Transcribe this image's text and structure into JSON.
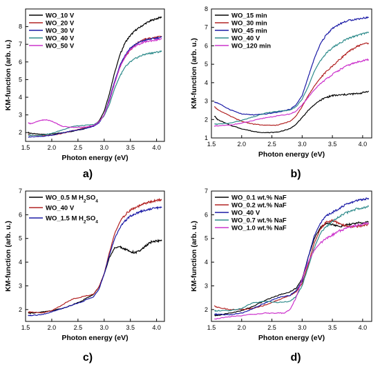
{
  "chart_data": [
    {
      "panel_label": "a)",
      "type": "line",
      "xlabel": "Photon energy (eV)",
      "ylabel": "KM-function (arb. u.)",
      "xlim": [
        1.5,
        4.15
      ],
      "ylim": [
        1.5,
        9.0
      ],
      "xticks": [
        "1.5",
        "2.0",
        "2.5",
        "3.0",
        "3.5",
        "4.0"
      ],
      "yticks": [
        "2",
        "3",
        "4",
        "5",
        "6",
        "7",
        "8"
      ],
      "legend_position": "top-left",
      "series": [
        {
          "name": "WO_10 V",
          "color": "#000000",
          "x": [
            1.55,
            1.6,
            1.8,
            2.0,
            2.2,
            2.4,
            2.6,
            2.8,
            2.9,
            3.0,
            3.1,
            3.2,
            3.3,
            3.4,
            3.5,
            3.6,
            3.7,
            3.8,
            3.9,
            4.0,
            4.1
          ],
          "y": [
            2.0,
            1.95,
            1.9,
            1.92,
            1.98,
            2.08,
            2.2,
            2.4,
            2.65,
            3.2,
            4.2,
            5.4,
            6.4,
            7.1,
            7.5,
            7.8,
            8.0,
            8.2,
            8.35,
            8.45,
            8.55
          ]
        },
        {
          "name": "WO_20 V",
          "color": "#b22222",
          "x": [
            1.55,
            1.6,
            1.8,
            2.0,
            2.2,
            2.4,
            2.6,
            2.8,
            2.9,
            3.0,
            3.1,
            3.2,
            3.3,
            3.4,
            3.5,
            3.6,
            3.7,
            3.8,
            3.9,
            4.0,
            4.1
          ],
          "y": [
            1.9,
            1.85,
            1.82,
            1.85,
            1.95,
            2.1,
            2.25,
            2.4,
            2.6,
            3.0,
            3.8,
            4.8,
            5.7,
            6.3,
            6.7,
            7.0,
            7.2,
            7.3,
            7.35,
            7.4,
            7.45
          ]
        },
        {
          "name": "WO_30 V",
          "color": "#1a1aa6",
          "x": [
            1.55,
            1.6,
            1.8,
            2.0,
            2.2,
            2.4,
            2.6,
            2.8,
            2.9,
            3.0,
            3.1,
            3.2,
            3.3,
            3.4,
            3.5,
            3.6,
            3.7,
            3.8,
            3.9,
            4.0,
            4.1
          ],
          "y": [
            1.75,
            1.75,
            1.78,
            1.85,
            1.98,
            2.1,
            2.2,
            2.35,
            2.55,
            3.0,
            3.9,
            4.9,
            5.8,
            6.4,
            6.8,
            7.0,
            7.15,
            7.25,
            7.3,
            7.35,
            7.4
          ]
        },
        {
          "name": "WO_40 V",
          "color": "#2e8b8b",
          "x": [
            1.55,
            1.6,
            1.8,
            2.0,
            2.2,
            2.4,
            2.6,
            2.8,
            2.9,
            3.0,
            3.1,
            3.2,
            3.3,
            3.4,
            3.5,
            3.6,
            3.7,
            3.8,
            3.9,
            4.0,
            4.1
          ],
          "y": [
            1.85,
            1.85,
            1.85,
            1.95,
            2.15,
            2.35,
            2.4,
            2.45,
            2.6,
            2.95,
            3.6,
            4.5,
            5.2,
            5.7,
            6.0,
            6.2,
            6.35,
            6.45,
            6.5,
            6.55,
            6.6
          ]
        },
        {
          "name": "WO_50 V",
          "color": "#cc33cc",
          "x": [
            1.55,
            1.6,
            1.7,
            1.8,
            1.9,
            2.0,
            2.1,
            2.2,
            2.4,
            2.6,
            2.8,
            2.9,
            3.0,
            3.1,
            3.2,
            3.3,
            3.4,
            3.5,
            3.6,
            3.7,
            3.8,
            3.9,
            4.0,
            4.1
          ],
          "y": [
            2.55,
            2.5,
            2.6,
            2.7,
            2.72,
            2.65,
            2.5,
            2.35,
            2.3,
            2.3,
            2.4,
            2.6,
            3.0,
            3.8,
            4.8,
            5.7,
            6.3,
            6.7,
            6.9,
            7.05,
            7.15,
            7.2,
            7.25,
            7.3
          ]
        }
      ]
    },
    {
      "panel_label": "b)",
      "type": "line",
      "xlabel": "Photon energy (eV)",
      "ylabel": "KM-function (arb. u.)",
      "xlim": [
        1.5,
        4.15
      ],
      "ylim": [
        1.0,
        8.0
      ],
      "xticks": [
        "1.5",
        "2.0",
        "2.5",
        "3.0",
        "3.5",
        "4.0"
      ],
      "yticks": [
        "1",
        "2",
        "3",
        "4",
        "5",
        "6",
        "7",
        "8"
      ],
      "legend_position": "top-left",
      "series": [
        {
          "name": "WO_15 min",
          "color": "#000000",
          "x": [
            1.55,
            1.6,
            1.8,
            2.0,
            2.2,
            2.4,
            2.6,
            2.8,
            2.9,
            3.0,
            3.1,
            3.2,
            3.3,
            3.4,
            3.5,
            3.6,
            3.7,
            3.8,
            3.9,
            4.0,
            4.1
          ],
          "y": [
            2.2,
            2.0,
            1.7,
            1.5,
            1.35,
            1.28,
            1.32,
            1.5,
            1.75,
            2.1,
            2.5,
            2.8,
            3.05,
            3.2,
            3.3,
            3.32,
            3.35,
            3.38,
            3.4,
            3.45,
            3.55
          ]
        },
        {
          "name": "WO_30 min",
          "color": "#b22222",
          "x": [
            1.55,
            1.6,
            1.8,
            2.0,
            2.2,
            2.4,
            2.6,
            2.8,
            2.9,
            3.0,
            3.1,
            3.2,
            3.3,
            3.4,
            3.5,
            3.6,
            3.7,
            3.8,
            3.9,
            4.0,
            4.1
          ],
          "y": [
            2.7,
            2.55,
            2.2,
            1.9,
            1.75,
            1.68,
            1.7,
            1.9,
            2.2,
            2.7,
            3.3,
            3.8,
            4.25,
            4.6,
            4.9,
            5.2,
            5.5,
            5.75,
            5.95,
            6.1,
            6.15
          ]
        },
        {
          "name": "WO_45 min",
          "color": "#1a1aa6",
          "x": [
            1.55,
            1.6,
            1.8,
            2.0,
            2.2,
            2.4,
            2.6,
            2.8,
            2.9,
            3.0,
            3.1,
            3.2,
            3.3,
            3.4,
            3.5,
            3.6,
            3.7,
            3.8,
            3.9,
            4.0,
            4.1
          ],
          "y": [
            2.95,
            2.9,
            2.55,
            2.3,
            2.25,
            2.3,
            2.4,
            2.55,
            2.8,
            3.3,
            4.3,
            5.3,
            6.1,
            6.6,
            6.95,
            7.15,
            7.3,
            7.4,
            7.45,
            7.5,
            7.55
          ]
        },
        {
          "name": "WO_40 V",
          "color": "#2e8b8b",
          "x": [
            1.55,
            1.6,
            1.8,
            2.0,
            2.2,
            2.4,
            2.6,
            2.8,
            2.9,
            3.0,
            3.1,
            3.2,
            3.3,
            3.4,
            3.5,
            3.6,
            3.7,
            3.8,
            3.9,
            4.0,
            4.1
          ],
          "y": [
            1.75,
            1.75,
            1.8,
            1.95,
            2.15,
            2.35,
            2.45,
            2.5,
            2.7,
            3.1,
            3.8,
            4.6,
            5.2,
            5.6,
            5.9,
            6.1,
            6.3,
            6.45,
            6.55,
            6.65,
            6.75
          ]
        },
        {
          "name": "WO_120 min",
          "color": "#cc33cc",
          "x": [
            1.55,
            1.6,
            1.8,
            2.0,
            2.2,
            2.4,
            2.6,
            2.8,
            2.9,
            3.0,
            3.1,
            3.2,
            3.3,
            3.4,
            3.5,
            3.6,
            3.7,
            3.8,
            3.9,
            4.0,
            4.1
          ],
          "y": [
            1.65,
            1.65,
            1.7,
            1.8,
            1.95,
            2.1,
            2.2,
            2.3,
            2.45,
            2.8,
            3.2,
            3.6,
            3.95,
            4.2,
            4.45,
            4.65,
            4.85,
            5.0,
            5.1,
            5.2,
            5.25
          ]
        }
      ]
    },
    {
      "panel_label": "c)",
      "type": "line",
      "xlabel": "Photon energy (eV)",
      "ylabel": "KM-function (arb. u.)",
      "xlim": [
        1.5,
        4.15
      ],
      "ylim": [
        1.5,
        7.0
      ],
      "xticks": [
        "1.5",
        "2.0",
        "2.5",
        "3.0",
        "3.5",
        "4.0"
      ],
      "yticks": [
        "2",
        "3",
        "4",
        "5",
        "6",
        "7"
      ],
      "legend_position": "top-left",
      "series": [
        {
          "name": "WO_0.5 M H",
          "sub": "2",
          "mid": "SO",
          "sub2": "4",
          "color": "#000000",
          "x": [
            1.55,
            1.6,
            1.8,
            2.0,
            2.2,
            2.4,
            2.6,
            2.8,
            2.9,
            3.0,
            3.1,
            3.2,
            3.3,
            3.4,
            3.5,
            3.6,
            3.7,
            3.8,
            3.9,
            4.0,
            4.1
          ],
          "y": [
            1.85,
            1.85,
            1.9,
            1.95,
            2.05,
            2.2,
            2.4,
            2.65,
            2.95,
            3.5,
            4.2,
            4.6,
            4.65,
            4.55,
            4.45,
            4.4,
            4.5,
            4.7,
            4.85,
            4.9,
            4.9
          ]
        },
        {
          "name": "WO_40 V",
          "color": "#b22222",
          "x": [
            1.55,
            1.6,
            1.8,
            2.0,
            2.2,
            2.4,
            2.6,
            2.8,
            2.9,
            3.0,
            3.1,
            3.2,
            3.3,
            3.4,
            3.5,
            3.6,
            3.7,
            3.8,
            3.9,
            4.0,
            4.1
          ],
          "y": [
            1.9,
            1.9,
            1.85,
            1.95,
            2.2,
            2.45,
            2.55,
            2.65,
            2.95,
            3.5,
            4.4,
            5.2,
            5.7,
            6.0,
            6.2,
            6.3,
            6.4,
            6.5,
            6.55,
            6.6,
            6.65
          ]
        },
        {
          "name": "WO_1.5 M H",
          "sub": "2",
          "mid": "SO",
          "sub2": "4",
          "color": "#1a1aa6",
          "x": [
            1.55,
            1.6,
            1.8,
            2.0,
            2.2,
            2.4,
            2.6,
            2.8,
            2.9,
            3.0,
            3.1,
            3.2,
            3.3,
            3.4,
            3.5,
            3.6,
            3.7,
            3.8,
            3.9,
            4.0,
            4.1
          ],
          "y": [
            1.75,
            1.75,
            1.78,
            1.9,
            2.05,
            2.2,
            2.35,
            2.55,
            2.85,
            3.5,
            4.3,
            5.0,
            5.45,
            5.75,
            5.95,
            6.05,
            6.15,
            6.2,
            6.25,
            6.3,
            6.3
          ]
        }
      ]
    },
    {
      "panel_label": "d)",
      "type": "line",
      "xlabel": "Photon energy (eV)",
      "ylabel": "KM-function (arb. u.)",
      "xlim": [
        1.5,
        4.15
      ],
      "ylim": [
        1.5,
        7.0
      ],
      "xticks": [
        "1.5",
        "2.0",
        "2.5",
        "3.0",
        "3.5",
        "4.0"
      ],
      "yticks": [
        "2",
        "3",
        "4",
        "5",
        "6",
        "7"
      ],
      "legend_position": "top-left",
      "series": [
        {
          "name": "WO_0.1 wt.% NaF",
          "color": "#000000",
          "x": [
            1.55,
            1.6,
            1.8,
            2.0,
            2.2,
            2.4,
            2.6,
            2.8,
            2.9,
            3.0,
            3.1,
            3.2,
            3.3,
            3.4,
            3.5,
            3.6,
            3.7,
            3.8,
            3.9,
            4.0,
            4.1
          ],
          "y": [
            1.75,
            1.75,
            1.85,
            1.95,
            2.15,
            2.4,
            2.6,
            2.75,
            2.9,
            3.3,
            4.2,
            5.0,
            5.45,
            5.65,
            5.6,
            5.5,
            5.55,
            5.6,
            5.65,
            5.65,
            5.7
          ]
        },
        {
          "name": "WO_0.2 wt.% NaF",
          "color": "#b22222",
          "x": [
            1.55,
            1.6,
            1.8,
            2.0,
            2.2,
            2.4,
            2.6,
            2.8,
            2.9,
            3.0,
            3.1,
            3.2,
            3.3,
            3.4,
            3.5,
            3.6,
            3.7,
            3.8,
            3.9,
            4.0,
            4.1
          ],
          "y": [
            2.15,
            2.1,
            2.0,
            2.0,
            2.05,
            2.2,
            2.4,
            2.6,
            2.75,
            3.1,
            3.9,
            4.8,
            5.4,
            5.7,
            5.75,
            5.65,
            5.55,
            5.5,
            5.5,
            5.55,
            5.6
          ]
        },
        {
          "name": "WO_40 V",
          "color": "#1a1aa6",
          "x": [
            1.55,
            1.6,
            1.8,
            2.0,
            2.2,
            2.4,
            2.6,
            2.8,
            2.9,
            3.0,
            3.1,
            3.2,
            3.3,
            3.4,
            3.5,
            3.6,
            3.7,
            3.8,
            3.9,
            4.0,
            4.1
          ],
          "y": [
            1.8,
            1.8,
            1.78,
            1.85,
            2.05,
            2.3,
            2.5,
            2.6,
            2.8,
            3.2,
            4.2,
            5.1,
            5.65,
            5.95,
            6.1,
            6.25,
            6.4,
            6.5,
            6.6,
            6.65,
            6.7
          ]
        },
        {
          "name": "WO_0.7 wt.% NaF",
          "color": "#2e8b8b",
          "x": [
            1.55,
            1.6,
            1.8,
            2.0,
            2.2,
            2.4,
            2.6,
            2.8,
            2.9,
            3.0,
            3.1,
            3.2,
            3.3,
            3.4,
            3.5,
            3.6,
            3.7,
            3.8,
            3.9,
            4.0,
            4.1
          ],
          "y": [
            1.95,
            1.95,
            1.95,
            2.05,
            2.3,
            2.35,
            2.3,
            2.35,
            2.55,
            3.0,
            3.8,
            4.6,
            5.2,
            5.5,
            5.7,
            5.9,
            6.05,
            6.15,
            6.25,
            6.3,
            6.35
          ]
        },
        {
          "name": "WO_1.0 wt.% NaF",
          "color": "#cc33cc",
          "x": [
            1.55,
            1.6,
            1.8,
            2.0,
            2.2,
            2.4,
            2.6,
            2.7,
            2.8,
            2.9,
            3.0,
            3.1,
            3.2,
            3.3,
            3.4,
            3.5,
            3.6,
            3.7,
            3.8,
            3.9,
            4.0,
            4.1
          ],
          "y": [
            1.6,
            1.62,
            1.7,
            1.75,
            1.8,
            1.85,
            1.85,
            1.85,
            2.0,
            2.5,
            3.3,
            4.0,
            4.5,
            4.8,
            5.0,
            5.15,
            5.3,
            5.4,
            5.5,
            5.55,
            5.6,
            5.65
          ]
        }
      ]
    }
  ]
}
